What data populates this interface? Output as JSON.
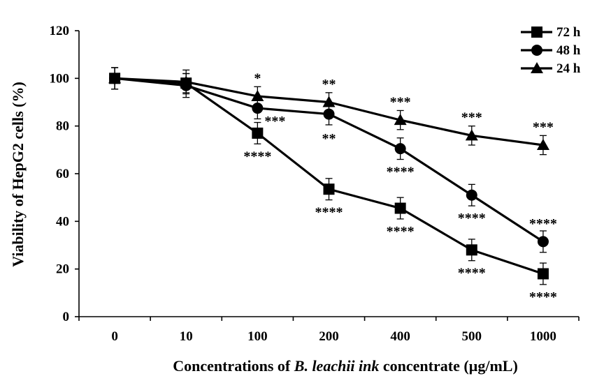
{
  "chart_data": {
    "type": "line",
    "title": "",
    "categories": [
      "0",
      "10",
      "100",
      "200",
      "400",
      "500",
      "1000"
    ],
    "ylim": [
      0,
      120
    ],
    "yticks": [
      0,
      20,
      40,
      60,
      80,
      100,
      120
    ],
    "ylabel": "Viability of HepG2 cells (%)",
    "xlabel": {
      "prefix": "Concentrations of ",
      "italic": "B. leachii ink",
      "suffix": " concentrate (µg/mL)"
    },
    "grid": false,
    "legend_position": "top-right",
    "series": [
      {
        "name": "72 h",
        "marker": "square",
        "values": [
          100,
          98,
          77,
          53.5,
          45.5,
          28,
          18
        ],
        "errors": [
          4.5,
          4,
          4.5,
          4.5,
          4.5,
          4.5,
          4.5
        ],
        "annotations": [
          "",
          "",
          "****",
          "****",
          "****",
          "****",
          "****"
        ]
      },
      {
        "name": "48 h",
        "marker": "circle",
        "values": [
          100,
          97,
          87.5,
          85,
          70.5,
          51,
          31.5
        ],
        "errors": [
          4.5,
          5,
          4.5,
          4.5,
          4.5,
          4.5,
          4.5
        ],
        "annotations": [
          "",
          "",
          "***",
          "**",
          "****",
          "****",
          "****"
        ]
      },
      {
        "name": "24 h",
        "marker": "triangle",
        "values": [
          100,
          98.5,
          92.5,
          90,
          82.5,
          76,
          72
        ],
        "errors": [
          4.5,
          5,
          4,
          4,
          4,
          4,
          4
        ],
        "annotations": [
          "",
          "",
          "*",
          "**",
          "***",
          "***",
          "***"
        ]
      }
    ]
  }
}
